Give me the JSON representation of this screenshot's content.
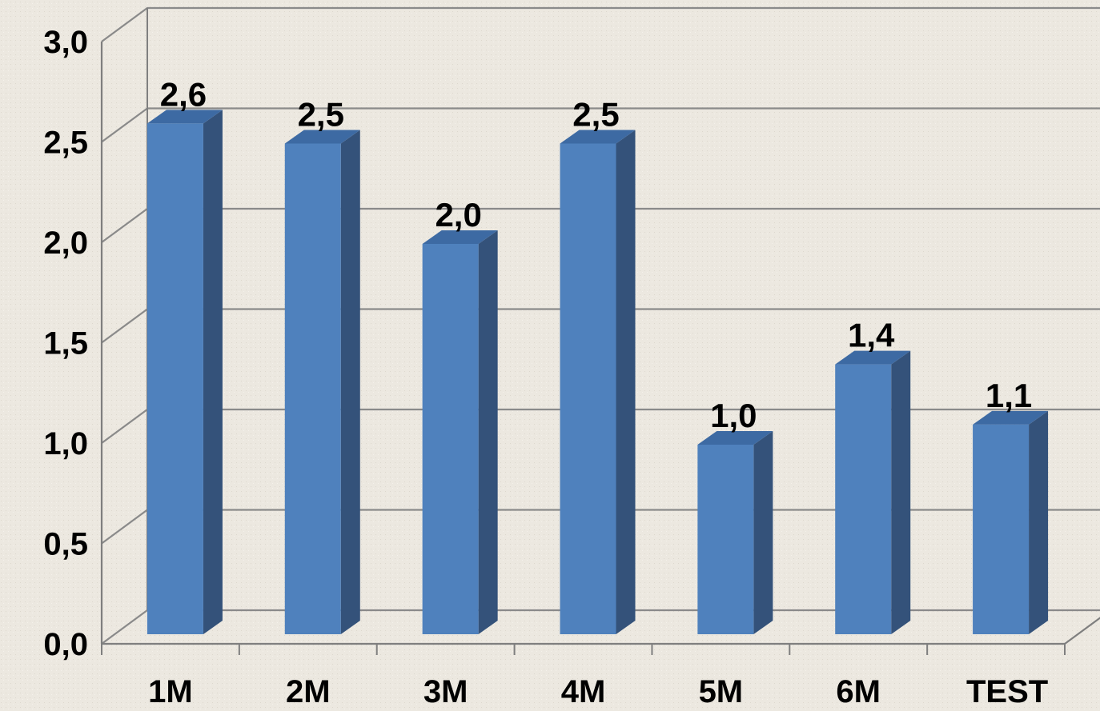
{
  "chart_data": {
    "type": "bar",
    "style": "3d-column",
    "categories": [
      "1M",
      "2M",
      "3M",
      "4M",
      "5M",
      "6M",
      "TEST"
    ],
    "values": [
      2.6,
      2.5,
      2.0,
      2.5,
      1.0,
      1.4,
      1.1
    ],
    "data_labels": [
      "2,6",
      "2,5",
      "2,0",
      "2,5",
      "1,0",
      "1,4",
      "1,1"
    ],
    "y_ticks": [
      "0,0",
      "0,5",
      "1,0",
      "1,5",
      "2,0",
      "2,5",
      "3,0"
    ],
    "ylim": [
      0,
      3.0
    ],
    "grid": true,
    "legend": "none",
    "title": "",
    "xlabel": "",
    "ylabel": ""
  },
  "colors": {
    "background": "#ece8e0",
    "bar_front": "#4f81bd",
    "bar_side": "#34527a",
    "bar_top": "#3d6aa3",
    "gridline": "#8a8a8a",
    "axis": "#7f7f7f"
  }
}
